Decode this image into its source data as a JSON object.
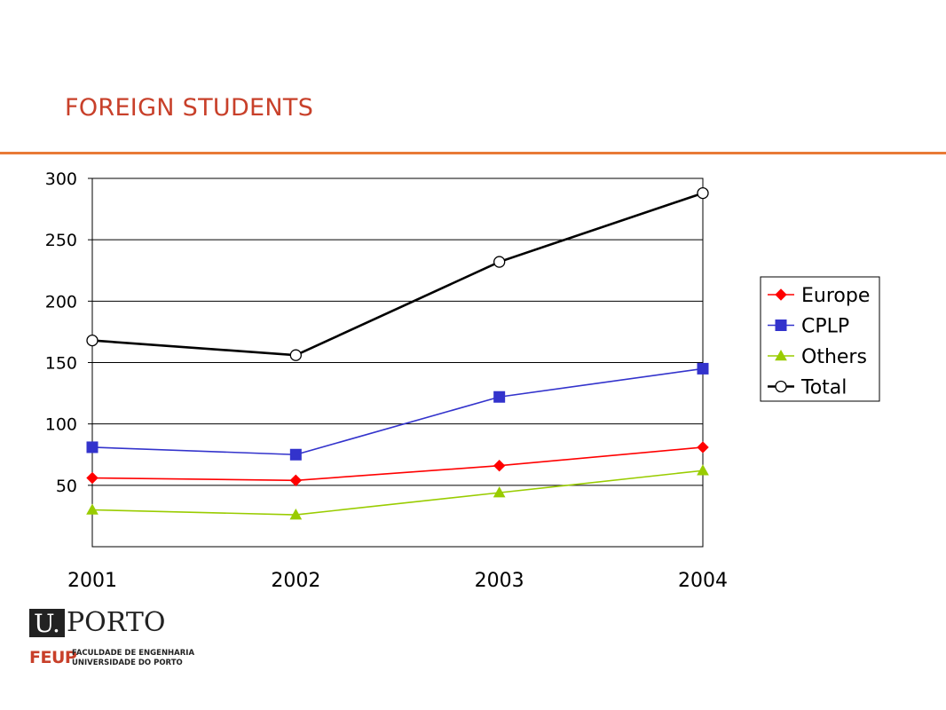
{
  "header": {
    "title": "FOREIGN STUDENTS"
  },
  "chart_data": {
    "type": "line",
    "x": [
      "2001",
      "2002",
      "2003",
      "2004"
    ],
    "ylim": [
      0,
      300
    ],
    "yticks": [
      50,
      100,
      150,
      200,
      250,
      300
    ],
    "grid": true,
    "legend_position": "right",
    "series": [
      {
        "name": "Europe",
        "values": [
          56,
          54,
          66,
          81
        ],
        "color": "#ff0000",
        "marker": "diamond"
      },
      {
        "name": "CPLP",
        "values": [
          81,
          75,
          122,
          145
        ],
        "color": "#3333cc",
        "marker": "square"
      },
      {
        "name": "Others",
        "values": [
          30,
          26,
          44,
          62
        ],
        "color": "#99cc00",
        "marker": "triangle"
      },
      {
        "name": "Total",
        "values": [
          168,
          156,
          232,
          288
        ],
        "color": "#000000",
        "marker": "circle"
      }
    ]
  },
  "logo": {
    "u_letter": "U.",
    "porto_word": "PORTO",
    "feup": "FEUP",
    "faculty_line1": "FACULDADE DE ENGENHARIA",
    "faculty_line2": "UNIVERSIDADE DO PORTO"
  }
}
